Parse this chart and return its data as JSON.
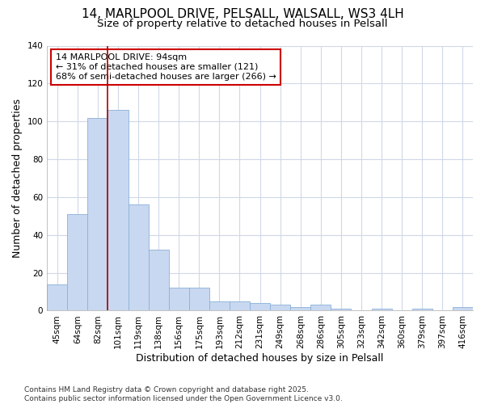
{
  "title_line1": "14, MARLPOOL DRIVE, PELSALL, WALSALL, WS3 4LH",
  "title_line2": "Size of property relative to detached houses in Pelsall",
  "xlabel": "Distribution of detached houses by size in Pelsall",
  "ylabel": "Number of detached properties",
  "categories": [
    "45sqm",
    "64sqm",
    "82sqm",
    "101sqm",
    "119sqm",
    "138sqm",
    "156sqm",
    "175sqm",
    "193sqm",
    "212sqm",
    "231sqm",
    "249sqm",
    "268sqm",
    "286sqm",
    "305sqm",
    "323sqm",
    "342sqm",
    "360sqm",
    "379sqm",
    "397sqm",
    "416sqm"
  ],
  "values": [
    14,
    51,
    102,
    106,
    56,
    32,
    12,
    12,
    5,
    5,
    4,
    3,
    2,
    3,
    1,
    0,
    1,
    0,
    1,
    0,
    2
  ],
  "bar_color": "#c8d8f0",
  "bar_edge_color": "#8ab0d8",
  "background_color": "#ffffff",
  "grid_color": "#d0d8e8",
  "annotation_text": "14 MARLPOOL DRIVE: 94sqm\n← 31% of detached houses are smaller (121)\n68% of semi-detached houses are larger (266) →",
  "annotation_box_color": "#ffffff",
  "annotation_box_edge": "#cc0000",
  "vline_color": "#aa0000",
  "ylim": [
    0,
    140
  ],
  "yticks": [
    0,
    20,
    40,
    60,
    80,
    100,
    120,
    140
  ],
  "footer": "Contains HM Land Registry data © Crown copyright and database right 2025.\nContains public sector information licensed under the Open Government Licence v3.0.",
  "title_fontsize": 11,
  "subtitle_fontsize": 9.5,
  "axis_label_fontsize": 9,
  "tick_fontsize": 7.5,
  "annotation_fontsize": 8,
  "footer_fontsize": 6.5
}
